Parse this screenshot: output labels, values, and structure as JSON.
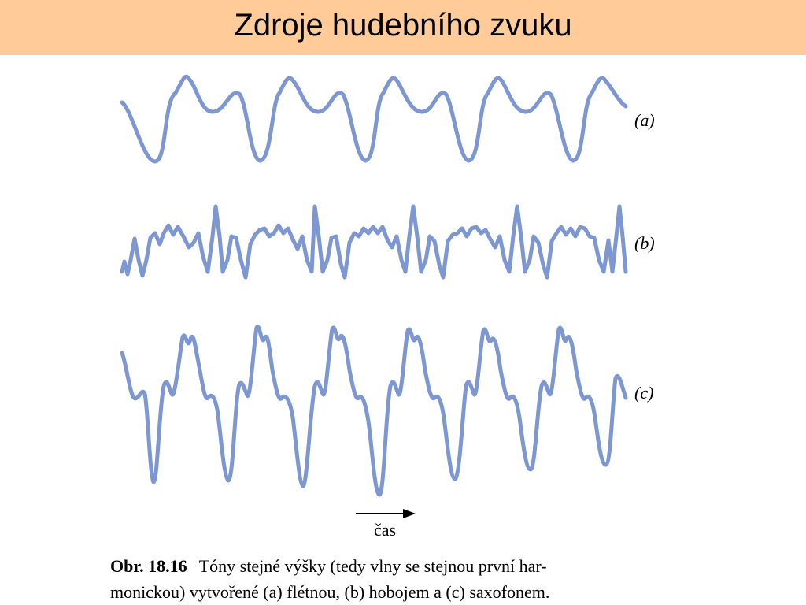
{
  "slide": {
    "title": "Zdroje hudebního zvuku",
    "colors": {
      "title_bar": "#ffcc99",
      "wave": "#7d97d2"
    }
  },
  "figure": {
    "labels": {
      "a": "(a)",
      "b": "(b)",
      "c": "(c)"
    },
    "time_label": "čas",
    "caption_label": "Obr. 18.16",
    "caption_line1": "Tóny stejné výšky (tedy vlny se stejnou první har-",
    "caption_line2": "monickou) vytvořené (a) flétnou, (b) hobojem a (c) saxofonem."
  }
}
